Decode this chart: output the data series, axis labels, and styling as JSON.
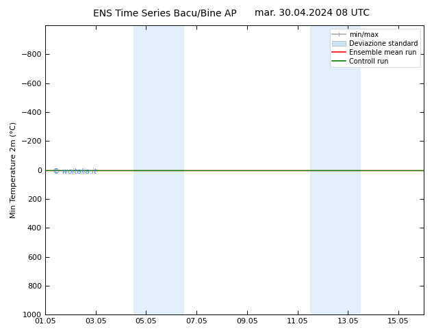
{
  "title_left": "ENS Time Series Bacu/Bine AP",
  "title_right": "mar. 30.04.2024 08 UTC",
  "ylabel": "Min Temperature 2m (°C)",
  "background_color": "#ffffff",
  "plot_bg_color": "#ffffff",
  "ylim_bottom": 1000,
  "ylim_top": -1000,
  "yticks": [
    -800,
    -600,
    -400,
    -200,
    0,
    200,
    400,
    600,
    800,
    1000
  ],
  "xtick_labels": [
    "01.05",
    "03.05",
    "05.05",
    "07.05",
    "09.05",
    "11.05",
    "13.05",
    "15.05"
  ],
  "xtick_positions": [
    0,
    2,
    4,
    6,
    8,
    10,
    12,
    14
  ],
  "xlim": [
    0,
    15
  ],
  "shaded_bands": [
    {
      "x_start": 3.5,
      "x_end": 5.5,
      "color": "#cce5f5",
      "alpha": 0.6
    },
    {
      "x_start": 10.5,
      "x_end": 12.5,
      "color": "#cce5f5",
      "alpha": 0.6
    }
  ],
  "green_line_y": 0,
  "green_line_color": "#008000",
  "red_line_color": "#ff0000",
  "watermark": "© woitalia.it",
  "watermark_color": "#4488cc",
  "legend_labels": [
    "min/max",
    "Deviazione standard",
    "Ensemble mean run",
    "Controll run"
  ],
  "minmax_color": "#aaaaaa",
  "dev_std_color": "#cce5f5",
  "ensemble_color": "#ff0000",
  "control_color": "#008000",
  "title_fontsize": 10,
  "axis_label_fontsize": 8,
  "tick_fontsize": 8,
  "legend_fontsize": 7
}
